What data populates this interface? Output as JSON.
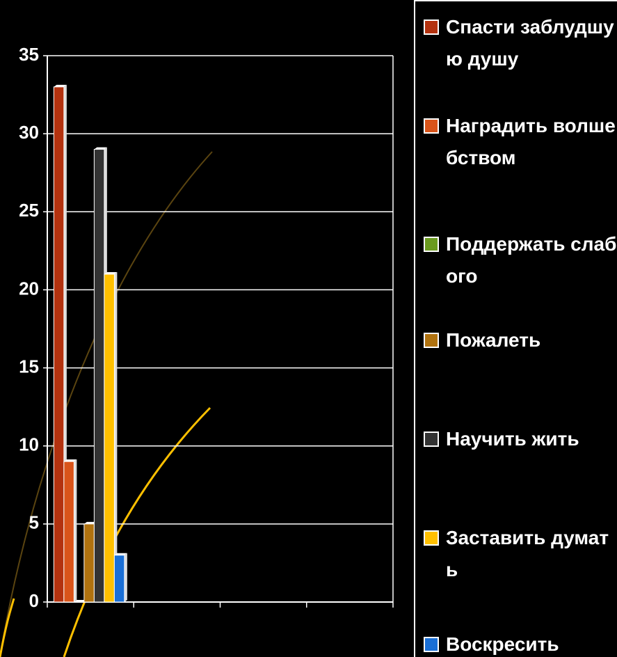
{
  "chart_data": {
    "type": "bar",
    "categories": [
      null,
      null,
      null,
      null
    ],
    "series": [
      {
        "name": "Спасти заблудшую душу",
        "color": "#b3320f",
        "values": [
          33,
          null,
          null,
          null
        ]
      },
      {
        "name": "Наградить волшебством",
        "color": "#d9541a",
        "values": [
          9,
          null,
          null,
          null
        ]
      },
      {
        "name": "Поддержать слабого",
        "color": "#6a9a1f",
        "values": [
          0,
          null,
          null,
          null
        ]
      },
      {
        "name": "Пожалеть",
        "color": "#b0720f",
        "values": [
          5,
          null,
          null,
          null
        ]
      },
      {
        "name": "Научить жить",
        "color": "#333333",
        "values": [
          29,
          null,
          null,
          null
        ]
      },
      {
        "name": "Заставить думать",
        "color": "#ffc000",
        "values": [
          21,
          null,
          null,
          null
        ]
      },
      {
        "name": "Воскресить",
        "color": "#1a6fd6",
        "values": [
          3,
          null,
          null,
          null
        ]
      }
    ],
    "ylim": [
      0,
      35
    ],
    "yticks": [
      0,
      5,
      10,
      15,
      20,
      25,
      30,
      35
    ],
    "grid": true,
    "legend": "right"
  }
}
